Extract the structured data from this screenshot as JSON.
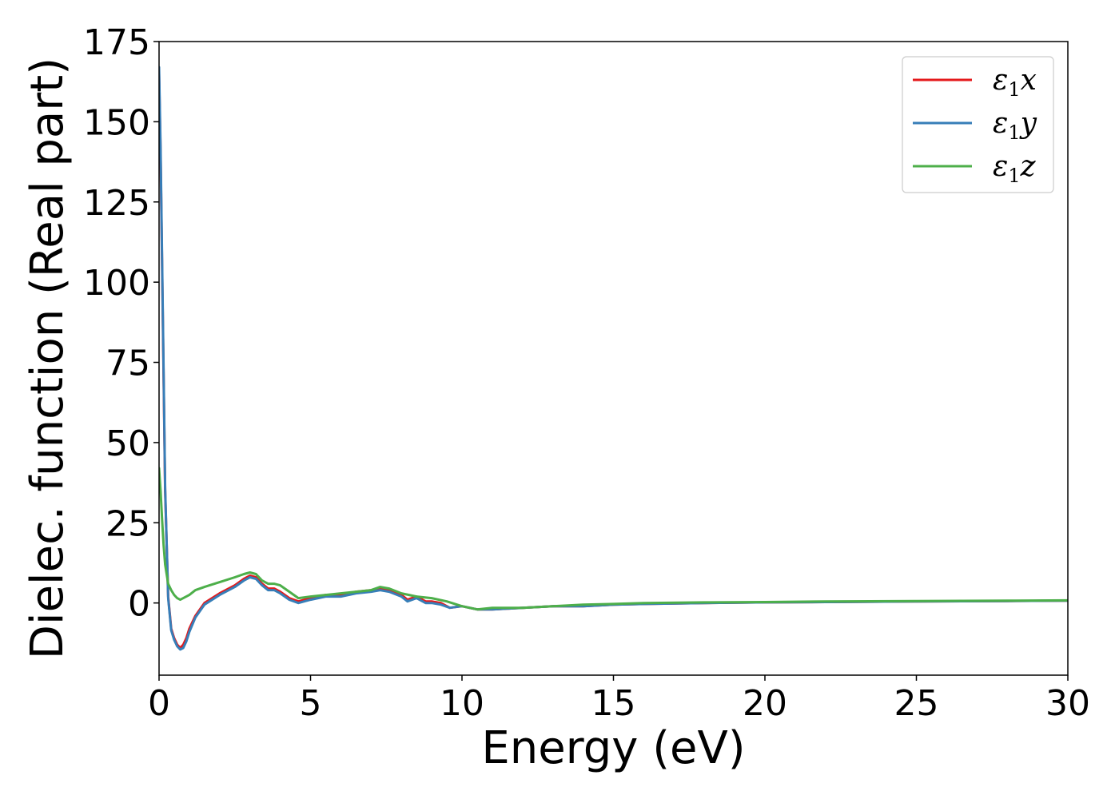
{
  "chart_data": {
    "type": "line",
    "xlabel": "Energy (eV)",
    "ylabel": "Dielec. function (Real part)",
    "xlim": [
      0,
      30
    ],
    "ylim": [
      -22.5,
      175
    ],
    "xticks": [
      0,
      5,
      10,
      15,
      20,
      25,
      30
    ],
    "yticks": [
      0,
      25,
      50,
      75,
      100,
      125,
      150,
      175
    ],
    "grid": false,
    "legend_position": "upper-right",
    "series": [
      {
        "name": "ε1x",
        "legend_base": "ε",
        "legend_sub": "1",
        "legend_var": "x",
        "color": "#e41a1c",
        "x": [
          0,
          0.05,
          0.1,
          0.15,
          0.2,
          0.3,
          0.4,
          0.5,
          0.6,
          0.7,
          0.8,
          0.9,
          1.0,
          1.2,
          1.5,
          2.0,
          2.5,
          2.8,
          3.0,
          3.2,
          3.4,
          3.6,
          3.8,
          4.0,
          4.3,
          4.6,
          5.0,
          5.5,
          6.0,
          6.5,
          7.0,
          7.3,
          7.6,
          8.0,
          8.2,
          8.5,
          8.8,
          9.0,
          9.3,
          9.6,
          10.0,
          10.5,
          11.0,
          12.0,
          13.0,
          14.0,
          15.0,
          16.0,
          18.0,
          20.0,
          22.0,
          25.0,
          28.0,
          30.0
        ],
        "y": [
          165,
          140,
          105,
          70,
          35,
          2,
          -8,
          -11,
          -13,
          -14,
          -13,
          -11,
          -8,
          -4,
          0,
          3,
          5.5,
          7.5,
          8.5,
          8,
          6,
          4.5,
          4.5,
          3.5,
          1.5,
          0.5,
          1.5,
          2.5,
          2.5,
          3.5,
          4,
          4.5,
          4,
          2.5,
          1,
          2,
          0.5,
          0.5,
          0,
          -1.5,
          -1,
          -2,
          -2,
          -1.5,
          -1,
          -1,
          -0.5,
          -0.3,
          0,
          0.2,
          0.3,
          0.5,
          0.6,
          0.7
        ]
      },
      {
        "name": "ε1y",
        "legend_base": "ε",
        "legend_sub": "1",
        "legend_var": "y",
        "color": "#377eb8",
        "x": [
          0,
          0.05,
          0.1,
          0.15,
          0.2,
          0.3,
          0.4,
          0.5,
          0.6,
          0.7,
          0.8,
          0.9,
          1.0,
          1.2,
          1.5,
          2.0,
          2.5,
          2.8,
          3.0,
          3.2,
          3.4,
          3.6,
          3.8,
          4.0,
          4.3,
          4.6,
          5.0,
          5.5,
          6.0,
          6.5,
          7.0,
          7.3,
          7.6,
          8.0,
          8.2,
          8.5,
          8.8,
          9.0,
          9.3,
          9.6,
          10.0,
          10.5,
          11.0,
          12.0,
          13.0,
          14.0,
          15.0,
          16.0,
          18.0,
          20.0,
          22.0,
          25.0,
          28.0,
          30.0
        ],
        "y": [
          167,
          142,
          107,
          72,
          36,
          1.5,
          -8.5,
          -11.5,
          -13.5,
          -14.5,
          -14,
          -12,
          -9,
          -4.5,
          -0.5,
          2.5,
          5,
          7,
          8,
          7.5,
          5.5,
          4,
          4,
          3,
          1,
          0,
          1,
          2,
          2,
          3,
          3.5,
          4,
          3.5,
          2,
          0.5,
          1.5,
          0,
          0,
          -0.5,
          -1.5,
          -1,
          -2,
          -2,
          -1.5,
          -1,
          -1,
          -0.5,
          -0.3,
          0,
          0.2,
          0.3,
          0.5,
          0.6,
          0.7
        ]
      },
      {
        "name": "ε1z",
        "legend_base": "ε",
        "legend_sub": "1",
        "legend_var": "z",
        "color": "#4daf4a",
        "x": [
          0,
          0.05,
          0.1,
          0.15,
          0.2,
          0.3,
          0.4,
          0.5,
          0.6,
          0.7,
          0.8,
          1.0,
          1.2,
          1.5,
          2.0,
          2.5,
          2.8,
          3.0,
          3.2,
          3.4,
          3.6,
          3.8,
          4.0,
          4.3,
          4.6,
          5.0,
          5.5,
          6.0,
          6.5,
          7.0,
          7.3,
          7.6,
          8.0,
          8.5,
          9.0,
          9.5,
          10.0,
          10.5,
          11.0,
          12.0,
          13.0,
          14.0,
          15.0,
          16.0,
          18.0,
          20.0,
          22.0,
          25.0,
          28.0,
          30.0
        ],
        "y": [
          42,
          35,
          26,
          18,
          12,
          6,
          4,
          2.5,
          1.5,
          1,
          1.5,
          2.5,
          4,
          5,
          6.5,
          8,
          9,
          9.5,
          9,
          7,
          6,
          6,
          5.5,
          3.5,
          1.5,
          2,
          2.5,
          3,
          3.5,
          4,
          5,
          4.5,
          3,
          2,
          1.5,
          0.5,
          -1,
          -2,
          -1.5,
          -1.5,
          -1,
          -0.5,
          -0.3,
          0,
          0.2,
          0.3,
          0.5,
          0.6,
          0.7,
          0.8
        ]
      }
    ]
  }
}
